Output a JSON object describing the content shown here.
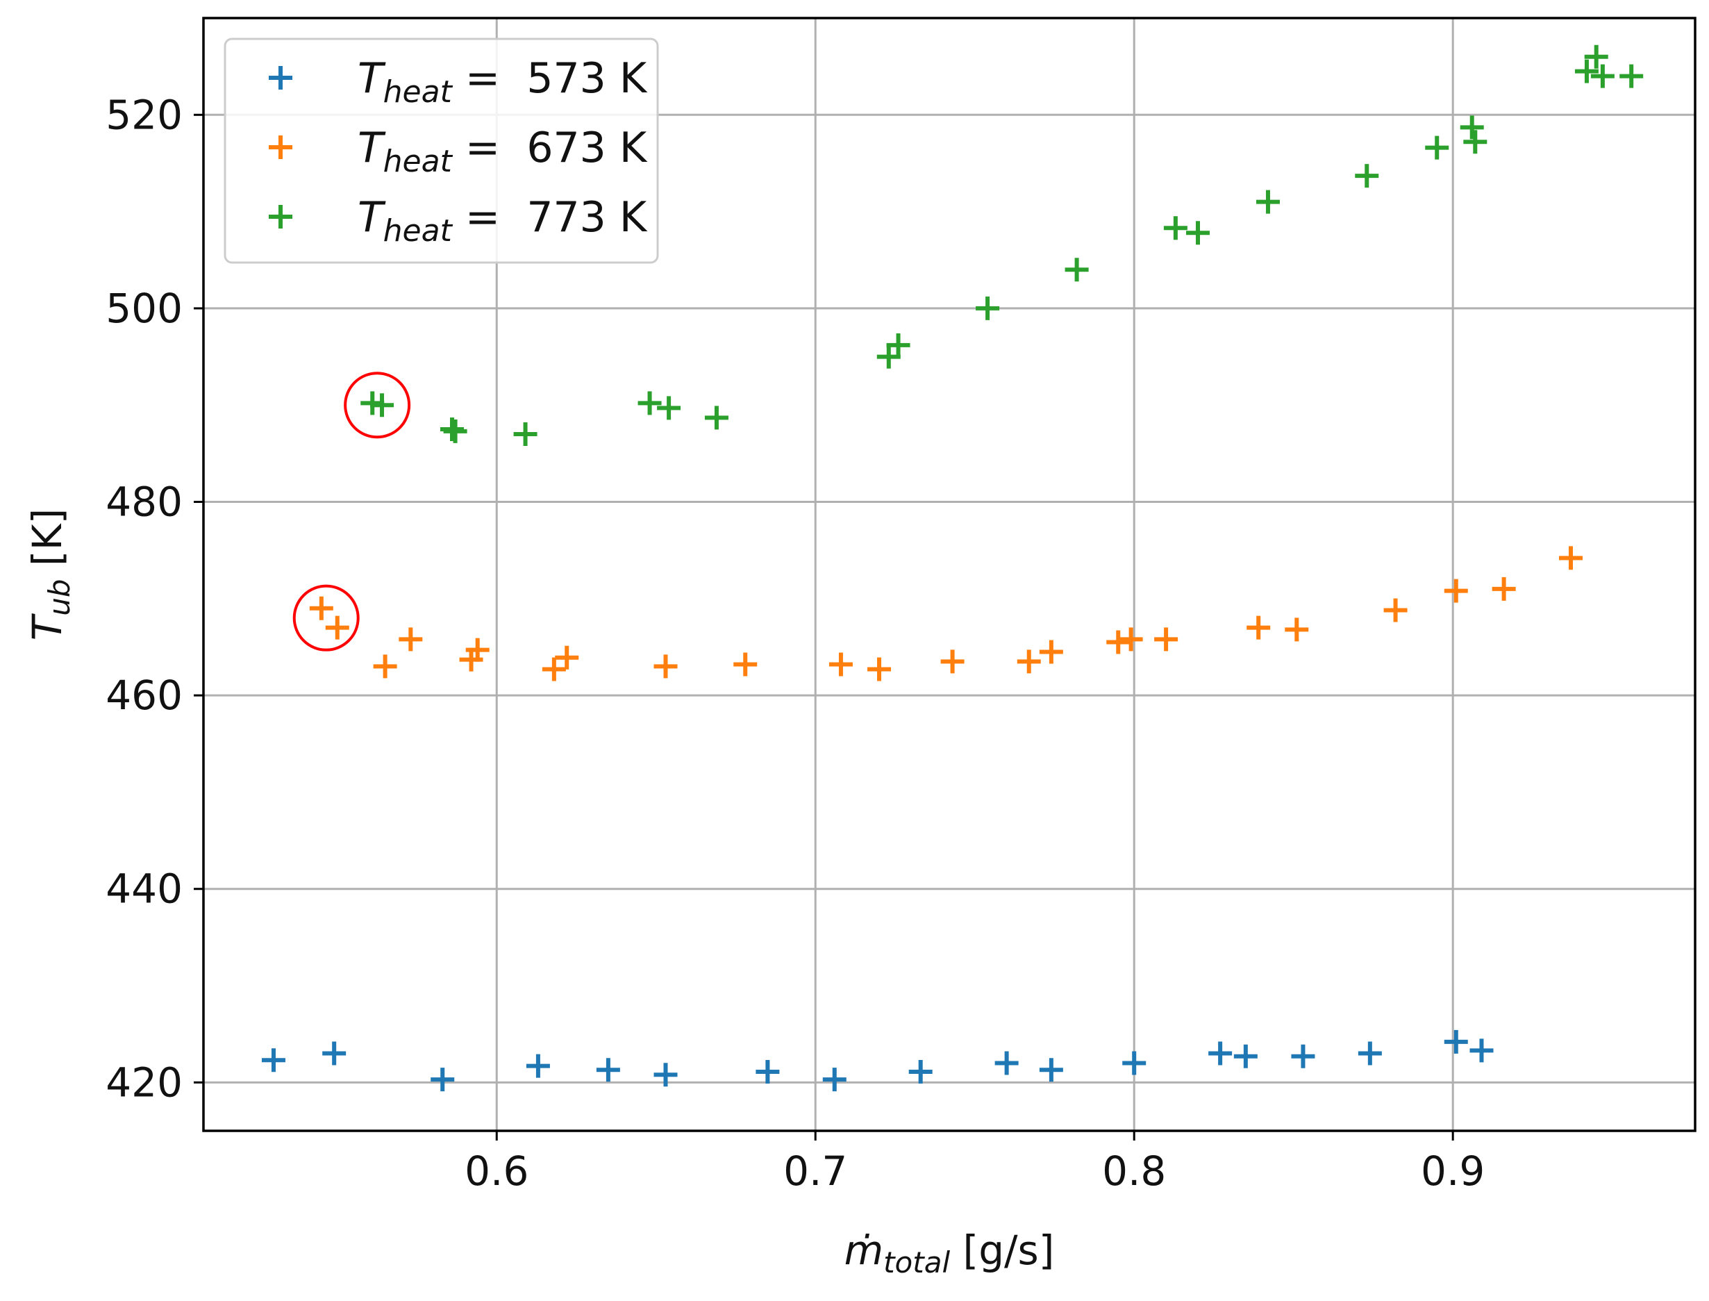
{
  "chart_data": {
    "type": "scatter",
    "title": "",
    "xlabel": {
      "main": "ṁ",
      "sub": "total",
      "unit": " [g/s]"
    },
    "ylabel": {
      "main": "T",
      "sub": "ub",
      "unit": " [K]"
    },
    "xlim": [
      0.508,
      0.976
    ],
    "ylim": [
      415,
      530
    ],
    "xticks": [
      0.6,
      0.7,
      0.8,
      0.9
    ],
    "xtick_labels": [
      "0.6",
      "0.7",
      "0.8",
      "0.9"
    ],
    "yticks": [
      420,
      440,
      460,
      480,
      500,
      520
    ],
    "ytick_labels": [
      "420",
      "440",
      "460",
      "480",
      "500",
      "520"
    ],
    "grid": true,
    "marker": "+",
    "legend": {
      "position": "top-left"
    },
    "series": [
      {
        "name": "573 K",
        "legend_prefix": "T",
        "legend_sub": "heat",
        "legend_eq": " = ",
        "color": "#1f77b4",
        "points": [
          [
            0.53,
            422.3
          ],
          [
            0.549,
            423.0
          ],
          [
            0.583,
            420.3
          ],
          [
            0.613,
            421.7
          ],
          [
            0.635,
            421.3
          ],
          [
            0.653,
            420.8
          ],
          [
            0.685,
            421.1
          ],
          [
            0.706,
            420.3
          ],
          [
            0.733,
            421.1
          ],
          [
            0.76,
            422.0
          ],
          [
            0.774,
            421.3
          ],
          [
            0.8,
            422.0
          ],
          [
            0.827,
            423.0
          ],
          [
            0.835,
            422.7
          ],
          [
            0.853,
            422.7
          ],
          [
            0.874,
            423.0
          ],
          [
            0.901,
            424.2
          ],
          [
            0.909,
            423.3
          ]
        ]
      },
      {
        "name": "673 K",
        "legend_prefix": "T",
        "legend_sub": "heat",
        "legend_eq": " = ",
        "color": "#ff7f0e",
        "points": [
          [
            0.545,
            469.0
          ],
          [
            0.55,
            467.0
          ],
          [
            0.565,
            463.0
          ],
          [
            0.573,
            465.8
          ],
          [
            0.592,
            463.7
          ],
          [
            0.594,
            464.7
          ],
          [
            0.618,
            462.7
          ],
          [
            0.622,
            463.9
          ],
          [
            0.653,
            463.0
          ],
          [
            0.678,
            463.2
          ],
          [
            0.708,
            463.2
          ],
          [
            0.72,
            462.7
          ],
          [
            0.743,
            463.5
          ],
          [
            0.767,
            463.5
          ],
          [
            0.774,
            464.5
          ],
          [
            0.795,
            465.5
          ],
          [
            0.799,
            465.8
          ],
          [
            0.81,
            465.8
          ],
          [
            0.839,
            467.0
          ],
          [
            0.851,
            466.8
          ],
          [
            0.882,
            468.8
          ],
          [
            0.901,
            470.8
          ],
          [
            0.916,
            471.0
          ],
          [
            0.937,
            474.2
          ]
        ]
      },
      {
        "name": "773 K",
        "legend_prefix": "T",
        "legend_sub": "heat",
        "legend_eq": " = ",
        "color": "#2ca02c",
        "points": [
          [
            0.561,
            490.2
          ],
          [
            0.564,
            490.0
          ],
          [
            0.586,
            487.5
          ],
          [
            0.587,
            487.3
          ],
          [
            0.609,
            487.0
          ],
          [
            0.648,
            490.2
          ],
          [
            0.654,
            489.7
          ],
          [
            0.669,
            488.7
          ],
          [
            0.723,
            495.0
          ],
          [
            0.726,
            496.2
          ],
          [
            0.754,
            500.0
          ],
          [
            0.782,
            504.0
          ],
          [
            0.813,
            508.3
          ],
          [
            0.82,
            507.8
          ],
          [
            0.842,
            511.0
          ],
          [
            0.873,
            513.7
          ],
          [
            0.895,
            516.6
          ],
          [
            0.906,
            518.7
          ],
          [
            0.907,
            517.2
          ],
          [
            0.942,
            524.5
          ],
          [
            0.945,
            526.0
          ],
          [
            0.947,
            524.0
          ],
          [
            0.956,
            524.0
          ]
        ]
      }
    ],
    "annotations": [
      {
        "type": "circle",
        "x": 0.5625,
        "y": 490.0,
        "color": "#ff0000",
        "note": "highlighted point (773 K)"
      },
      {
        "type": "circle",
        "x": 0.5465,
        "y": 468.0,
        "color": "#ff0000",
        "note": "highlighted point (673 K)"
      }
    ]
  }
}
